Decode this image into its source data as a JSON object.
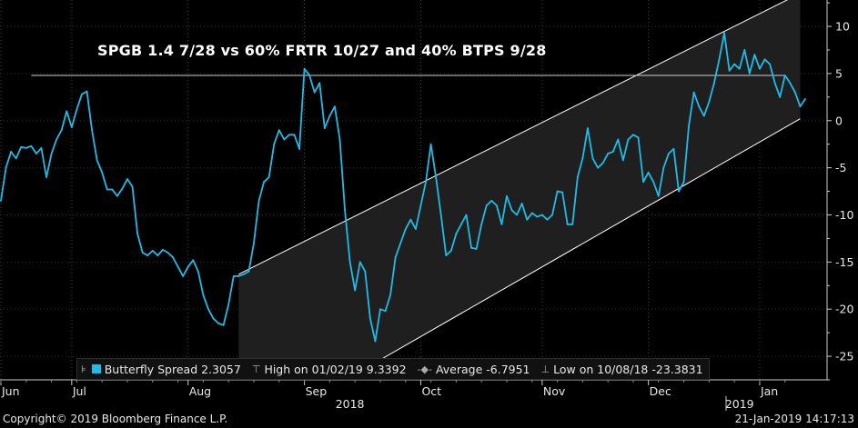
{
  "footer": {
    "copyright": "Copyright© 2019 Bloomberg Finance L.P.",
    "timestamp": "21-Jan-2019 14:17:13"
  },
  "legend": {
    "series_label": "Butterfly Spread 2.3057",
    "high_label": "High on 01/02/19 9.3392",
    "average_label": "Average -6.7951",
    "low_label": "Low on 10/08/18 -23.3831"
  },
  "colors": {
    "background": "#000000",
    "series": "#1ebde8",
    "channel_fill": "#1f1f1f",
    "channel_line": "#ffffff",
    "reference_line": "#cfcfcf",
    "axis": "#cccccc"
  },
  "chart_data": {
    "type": "line",
    "title": "SPGB 1.4 7/28 vs 60% FRTR 10/27 and 40% BTPS 9/28",
    "xlabel": "",
    "ylabel": "",
    "ylim": [
      -27.5,
      12.8
    ],
    "yticks": [
      10,
      5,
      0,
      -5,
      -10,
      -15,
      -20,
      -25
    ],
    "x_month_labels": [
      {
        "label": "Jun",
        "x": 0
      },
      {
        "label": "Jul",
        "x": 14
      },
      {
        "label": "Aug",
        "x": 37
      },
      {
        "label": "Sep",
        "x": 60
      },
      {
        "label": "Oct",
        "x": 83
      },
      {
        "label": "Nov",
        "x": 107
      },
      {
        "label": "Dec",
        "x": 128
      },
      {
        "label": "Jan",
        "x": 150
      }
    ],
    "x_year_labels": [
      {
        "label": "2018",
        "x": 69
      },
      {
        "label": "2019",
        "x": 146
      }
    ],
    "series": [
      {
        "name": "Butterfly Spread",
        "values": [
          -8.5,
          -5.0,
          -3.3,
          -4.0,
          -2.8,
          -2.9,
          -2.7,
          -3.5,
          -2.9,
          -6.0,
          -3.5,
          -2.0,
          -1.0,
          1.0,
          -0.7,
          1.2,
          2.8,
          3.1,
          -1.0,
          -4.2,
          -5.5,
          -7.3,
          -7.3,
          -8.0,
          -7.2,
          -6.2,
          -7.0,
          -12.0,
          -14.0,
          -14.3,
          -13.8,
          -14.3,
          -13.7,
          -14.0,
          -14.5,
          -15.5,
          -16.5,
          -15.5,
          -14.8,
          -16.0,
          -18.5,
          -20.0,
          -21.0,
          -21.5,
          -21.7,
          -19.5,
          -16.5,
          -16.5,
          -16.3,
          -16.0,
          -13.0,
          -8.5,
          -6.5,
          -6.0,
          -2.5,
          -1.0,
          -2.0,
          -1.5,
          -1.5,
          -3.0,
          5.5,
          4.8,
          3.0,
          4.0,
          -0.8,
          0.5,
          1.5,
          -2.0,
          -9.5,
          -15.0,
          -18.0,
          -15.0,
          -16.0,
          -21.0,
          -23.4,
          -20.0,
          -20.2,
          -18.5,
          -14.5,
          -13.0,
          -11.5,
          -10.5,
          -11.5,
          -9.0,
          -6.5,
          -2.5,
          -6.0,
          -10.0,
          -14.3,
          -13.8,
          -12.0,
          -11.0,
          -10.0,
          -13.5,
          -13.6,
          -11.0,
          -9.0,
          -8.5,
          -9.0,
          -11.0,
          -8.0,
          -9.5,
          -10.0,
          -8.8,
          -10.5,
          -9.8,
          -10.2,
          -10.0,
          -10.5,
          -10.0,
          -7.5,
          -7.6,
          -11.0,
          -11.0,
          -6.0,
          -4.0,
          -0.8,
          -4.0,
          -5.0,
          -4.5,
          -3.5,
          -3.3,
          -2.0,
          -4.2,
          -2.0,
          -1.5,
          -1.8,
          -6.5,
          -5.5,
          -6.5,
          -8.0,
          -5.0,
          -3.5,
          -3.0,
          -7.5,
          -6.5,
          -0.5,
          3.0,
          1.5,
          0.5,
          2.0,
          4.0,
          6.5,
          9.3,
          5.3,
          6.0,
          5.5,
          7.5,
          5.0,
          7.0,
          5.5,
          6.5,
          6.0,
          4.0,
          2.5,
          4.8,
          4.0,
          3.0,
          1.5,
          2.3
        ]
      }
    ],
    "reference_line": {
      "y": 4.8,
      "x_start": 6,
      "x_end": 155
    },
    "channel": {
      "x_start": 47,
      "x_end": 158,
      "upper_start": -16.3,
      "upper_end": 13.5,
      "lower_start": -34.0,
      "lower_end": 0.2
    }
  }
}
